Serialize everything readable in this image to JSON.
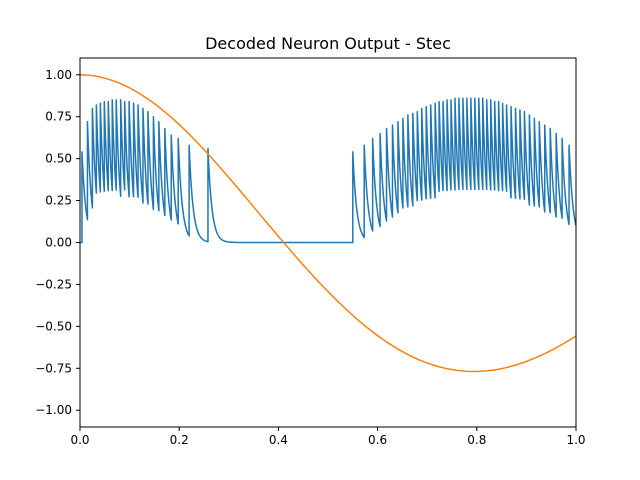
{
  "chart_data": {
    "type": "line",
    "title": "Decoded Neuron Output - Stec",
    "xlabel": "",
    "ylabel": "",
    "xlim": [
      0,
      1
    ],
    "ylim": [
      -1.1,
      1.1
    ],
    "grid": false,
    "x_ticks": [
      0.0,
      0.2,
      0.4,
      0.6,
      0.8,
      1.0
    ],
    "x_tick_labels": [
      "0.0",
      "0.2",
      "0.4",
      "0.6",
      "0.8",
      "1.0"
    ],
    "y_ticks": [
      1.0,
      0.75,
      0.5,
      0.25,
      0.0,
      -0.25,
      -0.5,
      -0.75,
      -1.0
    ],
    "y_tick_labels": [
      "1.00",
      "0.75",
      "0.50",
      "0.25",
      "0.00",
      "−0.25",
      "−0.50",
      "−0.75",
      "−1.00"
    ],
    "series": [
      {
        "color": "#1f77b4",
        "kind": "decoded spike train",
        "spike_times": [
          0.004,
          0.015,
          0.025,
          0.033,
          0.041,
          0.049,
          0.057,
          0.065,
          0.073,
          0.082,
          0.09,
          0.099,
          0.108,
          0.117,
          0.127,
          0.137,
          0.148,
          0.159,
          0.171,
          0.184,
          0.198,
          0.22,
          0.258,
          0.55,
          0.573,
          0.59,
          0.605,
          0.618,
          0.63,
          0.641,
          0.651,
          0.661,
          0.671,
          0.68,
          0.689,
          0.698,
          0.707,
          0.716,
          0.724,
          0.732,
          0.74,
          0.748,
          0.756,
          0.764,
          0.772,
          0.78,
          0.788,
          0.796,
          0.804,
          0.812,
          0.82,
          0.828,
          0.836,
          0.844,
          0.852,
          0.86,
          0.869,
          0.878,
          0.887,
          0.896,
          0.906,
          0.916,
          0.926,
          0.937,
          0.948,
          0.96,
          0.972,
          0.986
        ],
        "peak_values": [
          0.54,
          0.72,
          0.8,
          0.82,
          0.83,
          0.84,
          0.84,
          0.85,
          0.85,
          0.85,
          0.84,
          0.84,
          0.83,
          0.82,
          0.8,
          0.78,
          0.75,
          0.72,
          0.68,
          0.64,
          0.62,
          0.58,
          0.56,
          0.54,
          0.58,
          0.62,
          0.65,
          0.68,
          0.7,
          0.72,
          0.74,
          0.76,
          0.77,
          0.78,
          0.8,
          0.81,
          0.82,
          0.83,
          0.84,
          0.84,
          0.85,
          0.85,
          0.86,
          0.86,
          0.86,
          0.86,
          0.86,
          0.86,
          0.86,
          0.86,
          0.85,
          0.85,
          0.84,
          0.84,
          0.83,
          0.82,
          0.81,
          0.8,
          0.79,
          0.78,
          0.76,
          0.74,
          0.72,
          0.7,
          0.68,
          0.65,
          0.62,
          0.58
        ]
      },
      {
        "color": "#ff7f0e",
        "kind": "cosine",
        "x": [
          0.0,
          0.02,
          0.04,
          0.06,
          0.08,
          0.1,
          0.12,
          0.14,
          0.16,
          0.18,
          0.2,
          0.22,
          0.24,
          0.26,
          0.28,
          0.3,
          0.32,
          0.34,
          0.36,
          0.38,
          0.4,
          0.42,
          0.44,
          0.46,
          0.48,
          0.5,
          0.52,
          0.54,
          0.56,
          0.58,
          0.6,
          0.62,
          0.64,
          0.66,
          0.68,
          0.7,
          0.72,
          0.74,
          0.76,
          0.78,
          0.8,
          0.82,
          0.84,
          0.86,
          0.88,
          0.9,
          0.92,
          0.94,
          0.96,
          0.98,
          1.0
        ],
        "y": [
          1.0,
          0.9968,
          0.9873,
          0.9715,
          0.9497,
          0.9219,
          0.8884,
          0.8495,
          0.8054,
          0.7566,
          0.7034,
          0.6463,
          0.5856,
          0.522,
          0.4559,
          0.3878,
          0.3183,
          0.2479,
          0.1771,
          0.1065,
          0.0366,
          -0.0324,
          -0.1003,
          -0.1666,
          -0.2308,
          -0.2927,
          -0.3518,
          -0.4079,
          -0.4607,
          -0.5099,
          -0.5553,
          -0.5966,
          -0.6337,
          -0.6665,
          -0.6948,
          -0.7186,
          -0.7379,
          -0.7525,
          -0.7626,
          -0.7681,
          -0.7691,
          -0.7656,
          -0.7578,
          -0.7457,
          -0.7295,
          -0.7094,
          -0.6856,
          -0.6583,
          -0.6277,
          -0.594,
          -0.5574
        ]
      }
    ]
  }
}
